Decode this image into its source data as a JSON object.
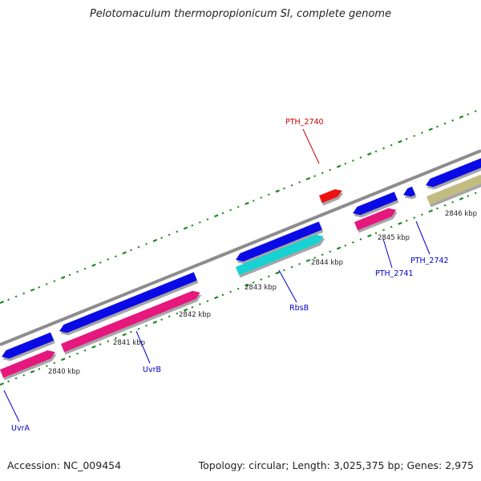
{
  "title": "Pelotomaculum thermopropionicum SI, complete genome",
  "footer": {
    "accession": "Accession: NC_009454",
    "summary": "Topology: circular; Length: 3,025,375 bp; Genes: 2,975"
  },
  "colors": {
    "backbone": "#8c8c8c",
    "forward_cds": "#0a0ae6",
    "reverse_cds": "#e6177d",
    "rna": "#17d2d2",
    "other": "#c2bc82",
    "highlight": "#ee1111",
    "label_forward": "#0000c8",
    "label_highlight": "#cc0000",
    "tick": "#1a8a1a"
  },
  "ticks": [
    "2840 kbp",
    "2841 kbp",
    "2842 kbp",
    "2843 kbp",
    "2844 kbp",
    "2845 kbp",
    "2846 kbp"
  ],
  "gene_labels": [
    "UvrA",
    "UvrB",
    "RbsB",
    "PTH_2740",
    "PTH_2741",
    "PTH_2742"
  ]
}
